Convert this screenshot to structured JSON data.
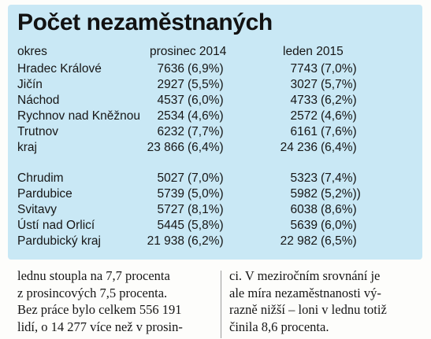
{
  "title": "Počet nezaměstnaných",
  "header": {
    "okres": "okres",
    "dec": "prosinec 2014",
    "jan": "leden 2015"
  },
  "group1": [
    {
      "name": "Hradec Králové",
      "dec_n": "7636",
      "dec_p": "(6,9%)",
      "jan_n": "7743",
      "jan_p": "(7,0%)"
    },
    {
      "name": "Jičín",
      "dec_n": "2927",
      "dec_p": "(5,5%)",
      "jan_n": "3027",
      "jan_p": "(5,7%)"
    },
    {
      "name": "Náchod",
      "dec_n": "4537",
      "dec_p": "(6,0%)",
      "jan_n": "4733",
      "jan_p": "(6,2%)"
    },
    {
      "name": "Rychnov nad Kněžnou",
      "dec_n": "2534",
      "dec_p": "(4,6%)",
      "jan_n": "2572",
      "jan_p": "(4,6%)"
    },
    {
      "name": "Trutnov",
      "dec_n": "6232",
      "dec_p": "(7,7%)",
      "jan_n": "6161",
      "jan_p": "(7,6%)"
    },
    {
      "name": "kraj",
      "dec_n": "23 866",
      "dec_p": "(6,4%)",
      "jan_n": "24 236",
      "jan_p": "(6,4%)"
    }
  ],
  "group2": [
    {
      "name": "Chrudim",
      "dec_n": "5027",
      "dec_p": "(7,0%)",
      "jan_n": "5323",
      "jan_p": "(7,4%)"
    },
    {
      "name": "Pardubice",
      "dec_n": "5739",
      "dec_p": "(5,0%)",
      "jan_n": "5982",
      "jan_p": "(5,2%))"
    },
    {
      "name": "Svitavy",
      "dec_n": "5727",
      "dec_p": "(8,1%)",
      "jan_n": "6038",
      "jan_p": "(8,6%)"
    },
    {
      "name": "Ústí nad Orlicí",
      "dec_n": "5445",
      "dec_p": "(5,8%)",
      "jan_n": "5639",
      "jan_p": "(6,0%)"
    },
    {
      "name": "Pardubický kraj",
      "dec_n": "21 938",
      "dec_p": "(6,2%)",
      "jan_n": "22 982",
      "jan_p": "(6,5%)"
    }
  ],
  "article": {
    "col1": [
      "lednu stoupla na 7,7 procenta",
      "z prosincových 7,5 procenta.",
      "Bez práce bylo celkem 556 191",
      "lidí, o 14 277 více než v prosin-"
    ],
    "col2": [
      "ci. V meziročním srovnání je",
      "ale míra nezaměstnanosti vý-",
      "razně nižší – loni v lednu totiž",
      "činila 8,6 procenta."
    ]
  }
}
